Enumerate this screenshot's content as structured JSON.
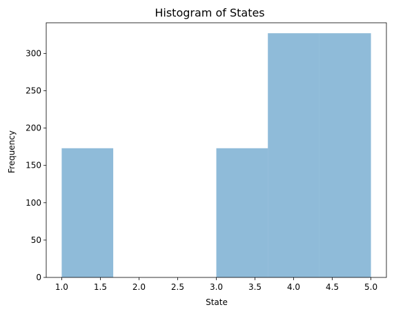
{
  "chart_data": {
    "type": "bar",
    "title": "Histogram of States",
    "xlabel": "State",
    "ylabel": "Frequency",
    "xlim": [
      0.8,
      5.2
    ],
    "ylim": [
      0,
      341
    ],
    "bins": [
      {
        "start": 1.0,
        "end": 1.6667,
        "count": 173
      },
      {
        "start": 1.6667,
        "end": 2.3333,
        "count": 0
      },
      {
        "start": 2.3333,
        "end": 3.0,
        "count": 0
      },
      {
        "start": 3.0,
        "end": 3.6667,
        "count": 173
      },
      {
        "start": 3.6667,
        "end": 4.3333,
        "count": 327
      },
      {
        "start": 4.3333,
        "end": 5.0,
        "count": 327
      }
    ],
    "xticks": [
      1.0,
      1.5,
      2.0,
      2.5,
      3.0,
      3.5,
      4.0,
      4.5,
      5.0
    ],
    "xtick_labels": [
      "1.0",
      "1.5",
      "2.0",
      "2.5",
      "3.0",
      "3.5",
      "4.0",
      "4.5",
      "5.0"
    ],
    "yticks": [
      0,
      50,
      100,
      150,
      200,
      250,
      300
    ],
    "ytick_labels": [
      "0",
      "50",
      "100",
      "150",
      "200",
      "250",
      "300"
    ],
    "bar_color": "#1f77b4",
    "bar_alpha": 0.5,
    "grid": false,
    "legend": "none"
  }
}
